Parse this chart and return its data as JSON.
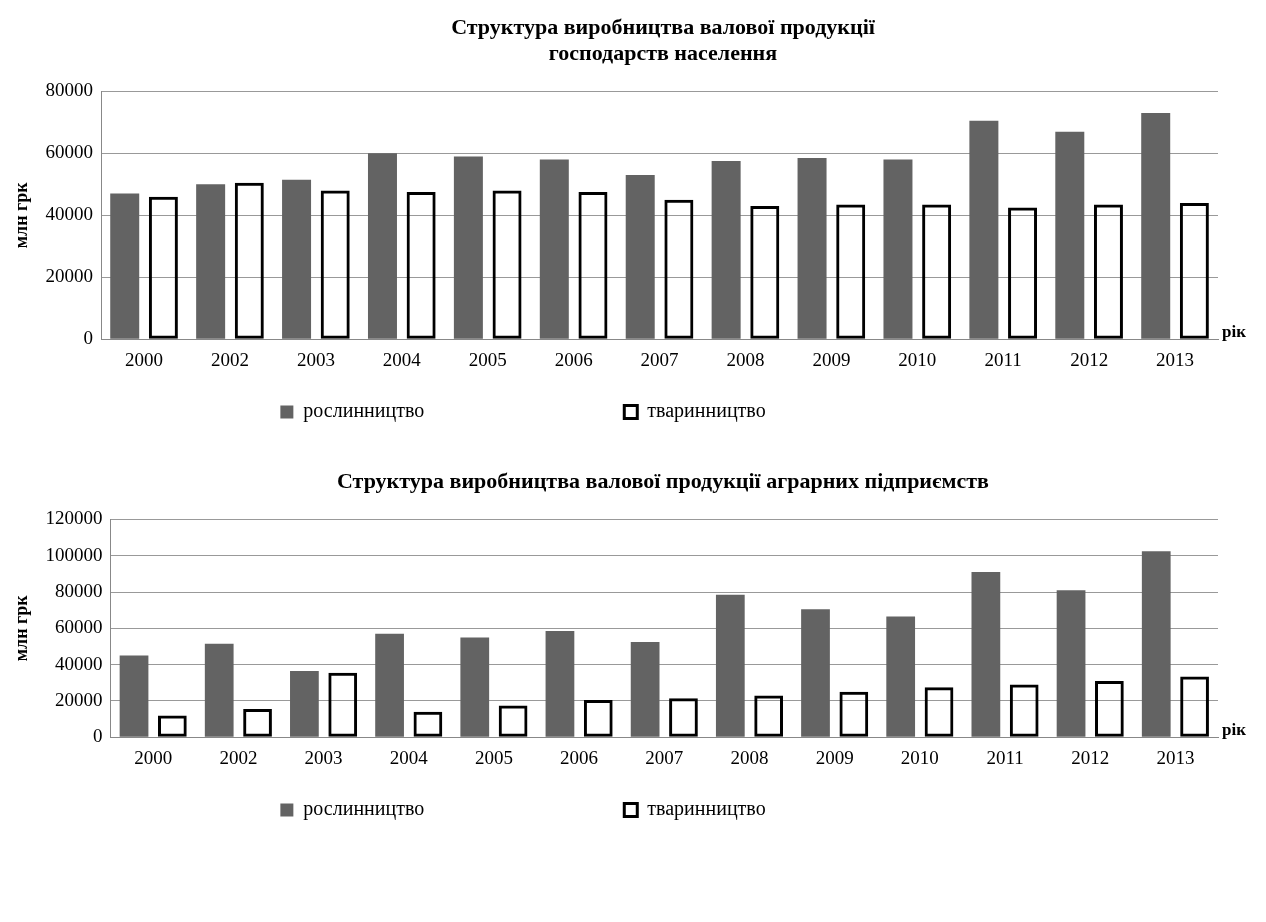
{
  "chart_data": [
    {
      "type": "bar",
      "title": "Структура виробництва валової продукції\nгосподарств населення",
      "ylabel": "млн грк",
      "xlabel": "рік",
      "categories": [
        "2000",
        "2002",
        "2003",
        "2004",
        "2005",
        "2006",
        "2007",
        "2008",
        "2009",
        "2010",
        "2011",
        "2012",
        "2013"
      ],
      "ylim": [
        0,
        80000
      ],
      "yticks": [
        0,
        20000,
        40000,
        60000,
        80000
      ],
      "grid": "y",
      "legend": "bottom",
      "series": [
        {
          "name": "рослинництво",
          "color": "#636363",
          "values": [
            47000,
            50000,
            51500,
            60000,
            59000,
            58000,
            53000,
            57500,
            58500,
            58000,
            70500,
            67000,
            73000
          ]
        },
        {
          "name": "тваринництво",
          "color": "#000000",
          "values": [
            46000,
            50500,
            48000,
            47500,
            48000,
            47500,
            45000,
            43000,
            43500,
            43500,
            42500,
            43500,
            44000
          ]
        }
      ]
    },
    {
      "type": "bar",
      "title": "Структура виробництва валової продукції аграрних підприємств",
      "ylabel": "млн грк",
      "xlabel": "рік",
      "categories": [
        "2000",
        "2002",
        "2003",
        "2004",
        "2005",
        "2006",
        "2007",
        "2008",
        "2009",
        "2010",
        "2011",
        "2012",
        "2013"
      ],
      "ylim": [
        0,
        120000
      ],
      "yticks": [
        0,
        20000,
        40000,
        60000,
        80000,
        100000,
        120000
      ],
      "grid": "y",
      "legend": "bottom",
      "series": [
        {
          "name": "рослинництво",
          "color": "#636363",
          "values": [
            45000,
            51500,
            36500,
            57000,
            55000,
            58500,
            52500,
            78500,
            70500,
            66500,
            91000,
            81000,
            102500
          ]
        },
        {
          "name": "тваринництво",
          "color": "#000000",
          "values": [
            12000,
            15500,
            35500,
            14000,
            17500,
            20500,
            21500,
            23000,
            25000,
            27500,
            29000,
            31000,
            33500
          ]
        }
      ]
    }
  ]
}
